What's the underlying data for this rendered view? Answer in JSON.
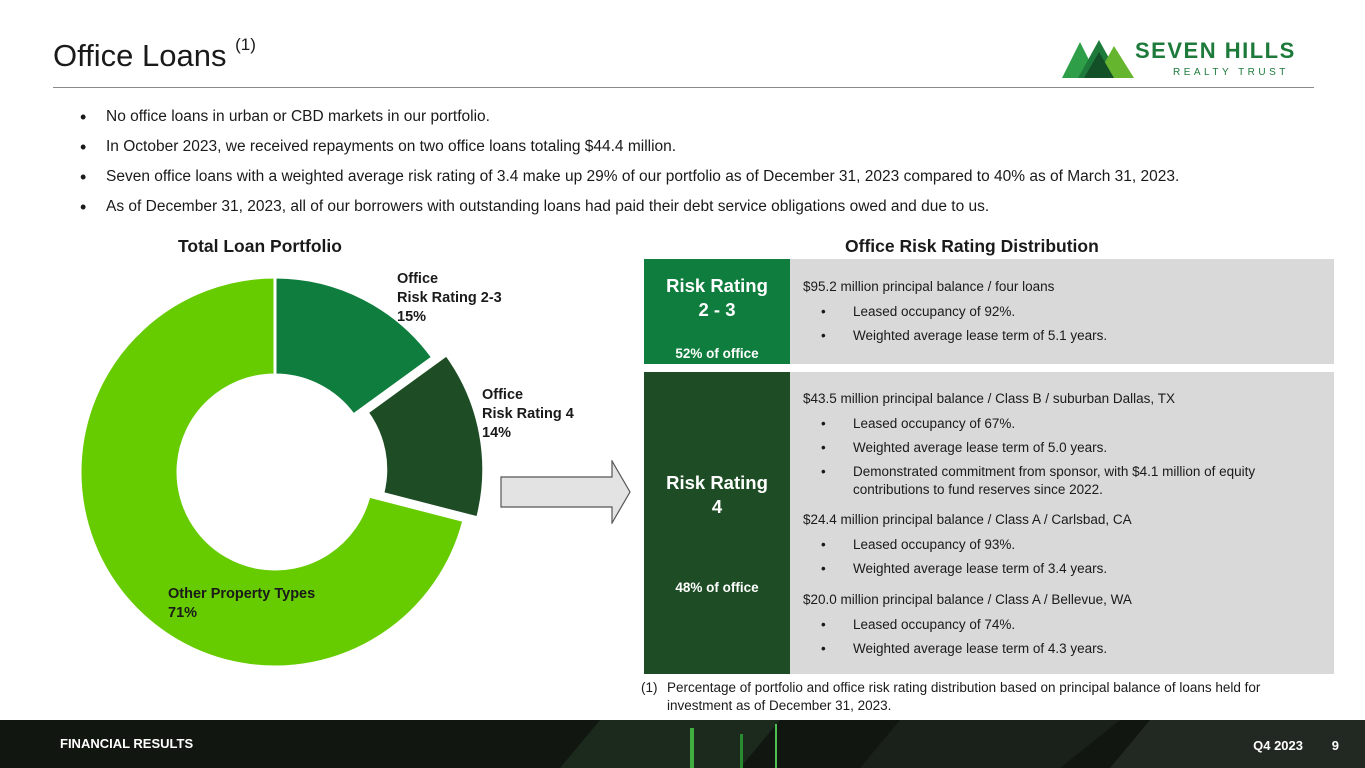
{
  "header": {
    "title": "Office Loans",
    "title_sup": "(1)"
  },
  "logo": {
    "name": "SEVEN HILLS",
    "sub": "REALTY TRUST",
    "colors": [
      "#1d7a3b",
      "#2e9e48",
      "#66b52e"
    ]
  },
  "bullets": [
    "No office loans in urban or CBD markets in our portfolio.",
    "In October 2023, we received repayments on two office loans totaling $44.4 million.",
    "Seven office loans with a weighted average risk rating of 3.4 make up 29% of our portfolio as of December 31, 2023 compared to 40% as of March 31, 2023.",
    "As of December 31, 2023, all of our borrowers with outstanding loans had paid their debt service obligations owed and due to us."
  ],
  "chart_data": {
    "type": "pie",
    "title": "Total Loan Portfolio",
    "hole": "donut",
    "slices": [
      {
        "label_lines": [
          "Office",
          "Risk Rating 2-3"
        ],
        "value_label": "15%",
        "value": 15,
        "color": "#0f7d3d",
        "exploded": false
      },
      {
        "label_lines": [
          "Office",
          "Risk Rating 4"
        ],
        "value_label": "14%",
        "value": 14,
        "color": "#1e4d25",
        "exploded": true
      },
      {
        "label_lines": [
          "Other Property Types"
        ],
        "value_label": "71%",
        "value": 71,
        "color": "#66cc00",
        "exploded": false
      }
    ]
  },
  "distribution": {
    "title": "Office Risk Rating Distribution",
    "rows": [
      {
        "title_lines": [
          "Risk Rating",
          "2 - 3"
        ],
        "pct": "52% of office",
        "color": "#0f7d3d",
        "loans": [
          {
            "line": "$95.2 million principal balance / four loans",
            "items": [
              "Leased occupancy of 92%.",
              "Weighted average lease term of 5.1 years."
            ]
          }
        ]
      },
      {
        "title_lines": [
          "Risk Rating",
          "4"
        ],
        "pct": "48% of office",
        "color": "#1e4d25",
        "loans": [
          {
            "line": "$43.5 million principal balance / Class B / suburban Dallas, TX",
            "items": [
              "Leased occupancy of 67%.",
              "Weighted average lease term of 5.0 years.",
              "Demonstrated commitment from sponsor, with $4.1 million of equity contributions to fund reserves since 2022."
            ]
          },
          {
            "line": "$24.4 million principal balance / Class A / Carlsbad, CA",
            "items": [
              "Leased occupancy of 93%.",
              "Weighted average lease term of 3.4 years."
            ]
          },
          {
            "line": "$20.0 million principal balance / Class A / Bellevue, WA",
            "items": [
              "Leased occupancy of 74%.",
              "Weighted average lease term of 4.3 years."
            ]
          }
        ]
      }
    ]
  },
  "footnote": {
    "num": "(1)",
    "text": "Percentage of portfolio and office risk rating distribution based on principal balance of loans held for investment as of December 31, 2023."
  },
  "footer": {
    "section": "FINANCIAL RESULTS",
    "period": "Q4 2023",
    "page": "9"
  }
}
